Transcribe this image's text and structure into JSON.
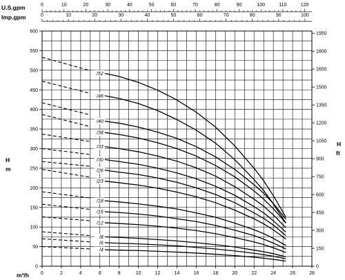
{
  "chart_data": {
    "type": "line",
    "title": "",
    "left_axis": {
      "label_top": "H",
      "label_bottom": "m",
      "ylim": [
        0,
        600
      ],
      "ticks": [
        0,
        50,
        100,
        150,
        200,
        250,
        300,
        350,
        400,
        450,
        500,
        550,
        600
      ]
    },
    "right_axis": {
      "label_top": "H",
      "label_bottom": "ft",
      "ticks": [
        0,
        150,
        300,
        450,
        600,
        750,
        900,
        1050,
        1200,
        1350,
        1500,
        1650,
        1800,
        1950
      ]
    },
    "bottom_axis": {
      "label": "m³/h",
      "xlim": [
        0,
        28
      ],
      "ticks": [
        0,
        2,
        4,
        6,
        8,
        10,
        12,
        14,
        16,
        18,
        20,
        22,
        24,
        26,
        28
      ]
    },
    "top_axes": [
      {
        "label": "U.S.gpm",
        "ticks": [
          0,
          10,
          20,
          30,
          40,
          50,
          60,
          70,
          80,
          90,
          100,
          110,
          120
        ]
      },
      {
        "label": "Imp.gpm",
        "ticks": [
          0,
          10,
          20,
          30,
          40,
          50,
          60,
          70,
          80,
          90,
          100
        ]
      }
    ],
    "dashed_range": [
      0,
      5
    ],
    "series": [
      {
        "name": "/52",
        "x": [
          0,
          5,
          6.5,
          8,
          10,
          12,
          14,
          16,
          18,
          20,
          22,
          23,
          24,
          25.3
        ],
        "y": [
          533,
          499,
          492,
          484,
          469,
          449,
          424,
          393,
          355,
          307,
          250,
          218,
          180,
          125
        ]
      },
      {
        "name": "/46",
        "x": [
          0,
          5,
          6.5,
          8,
          10,
          12,
          14,
          16,
          18,
          20,
          22,
          23,
          24,
          25.3
        ],
        "y": [
          472,
          441,
          435,
          428,
          415,
          397,
          374,
          347,
          314,
          272,
          221,
          193,
          159,
          110
        ]
      },
      {
        "name": "/40",
        "x": [
          0,
          5,
          6.5,
          8,
          10,
          12,
          14,
          16,
          18,
          20,
          22,
          23,
          24,
          25.3
        ],
        "y": [
          417,
          386,
          370,
          365,
          355,
          342,
          326,
          305,
          279,
          247,
          208,
          186,
          160,
          120
        ]
      },
      {
        "name": "/38",
        "x": [
          0,
          5,
          6.5,
          8,
          10,
          12,
          14,
          16,
          18,
          20,
          22,
          23,
          24,
          25.3
        ],
        "y": [
          387,
          356,
          341,
          336,
          327,
          315,
          300,
          281,
          257,
          228,
          192,
          171,
          147,
          110
        ]
      },
      {
        "name": "/33",
        "x": [
          0,
          5,
          6.5,
          8,
          10,
          12,
          14,
          16,
          18,
          20,
          22,
          23,
          24,
          25.3
        ],
        "y": [
          337,
          318,
          305,
          300,
          292,
          281,
          268,
          251,
          230,
          203,
          171,
          153,
          131,
          98
        ]
      },
      {
        "name": "/30",
        "x": [
          0,
          5,
          6.5,
          8,
          10,
          12,
          14,
          16,
          18,
          20,
          22,
          23,
          24,
          25.3
        ],
        "y": [
          300,
          285,
          272,
          267,
          260,
          250,
          238,
          223,
          204,
          181,
          152,
          136,
          116,
          87
        ]
      },
      {
        "name": "/26",
        "x": [
          0,
          5,
          6.5,
          8,
          10,
          12,
          14,
          16,
          18,
          20,
          22,
          23,
          24,
          25.3
        ],
        "y": [
          267,
          255,
          245,
          240,
          234,
          225,
          214,
          200,
          183,
          162,
          136,
          122,
          105,
          78
        ]
      },
      {
        "name": "/23",
        "x": [
          0,
          5,
          6.5,
          8,
          10,
          12,
          14,
          16,
          18,
          20,
          22,
          23,
          24,
          25.3
        ],
        "y": [
          247,
          227,
          217,
          213,
          207,
          199,
          189,
          177,
          162,
          143,
          121,
          108,
          93,
          69
        ]
      },
      {
        "name": "/18",
        "x": [
          0,
          5,
          6.5,
          8,
          10,
          12,
          14,
          16,
          18,
          20,
          22,
          23,
          24,
          25.3
        ],
        "y": [
          190,
          174,
          167,
          164,
          159,
          153,
          146,
          136,
          125,
          110,
          93,
          83,
          71,
          53
        ]
      },
      {
        "name": "/15",
        "x": [
          0,
          5,
          6.5,
          8,
          10,
          12,
          14,
          16,
          18,
          20,
          22,
          23,
          24,
          25.3
        ],
        "y": [
          158,
          145,
          139,
          137,
          133,
          128,
          121,
          114,
          104,
          92,
          78,
          69,
          59,
          44
        ]
      },
      {
        "name": "/12",
        "x": [
          0,
          5,
          6.5,
          8,
          10,
          12,
          14,
          16,
          18,
          20,
          22,
          23,
          24,
          25.3
        ],
        "y": [
          126,
          116,
          111,
          109,
          106,
          102,
          97,
          91,
          83,
          73,
          62,
          55,
          47,
          35
        ]
      },
      {
        "name": "/8",
        "x": [
          0,
          5,
          6.5,
          8,
          10,
          12,
          14,
          16,
          18,
          20,
          22,
          23,
          24,
          25.3
        ],
        "y": [
          88,
          78,
          75,
          73.5,
          71,
          68,
          64.5,
          60,
          55,
          49,
          41,
          37,
          32,
          24
        ]
      },
      {
        "name": "/6",
        "x": [
          0,
          5,
          6.5,
          8,
          10,
          12,
          14,
          16,
          18,
          20,
          22,
          23,
          24,
          25.3
        ],
        "y": [
          70,
          62,
          60,
          58.5,
          57,
          54.5,
          52,
          48,
          44,
          39,
          33,
          29.5,
          25.5,
          19
        ]
      },
      {
        "name": "/4",
        "x": [
          0,
          5,
          6.5,
          8,
          10,
          12,
          14,
          16,
          18,
          20,
          22,
          23,
          24,
          25.3
        ],
        "y": [
          50,
          44,
          42,
          41,
          40,
          38,
          36,
          33.5,
          30.5,
          27,
          23,
          20.5,
          17.5,
          13
        ]
      }
    ]
  }
}
